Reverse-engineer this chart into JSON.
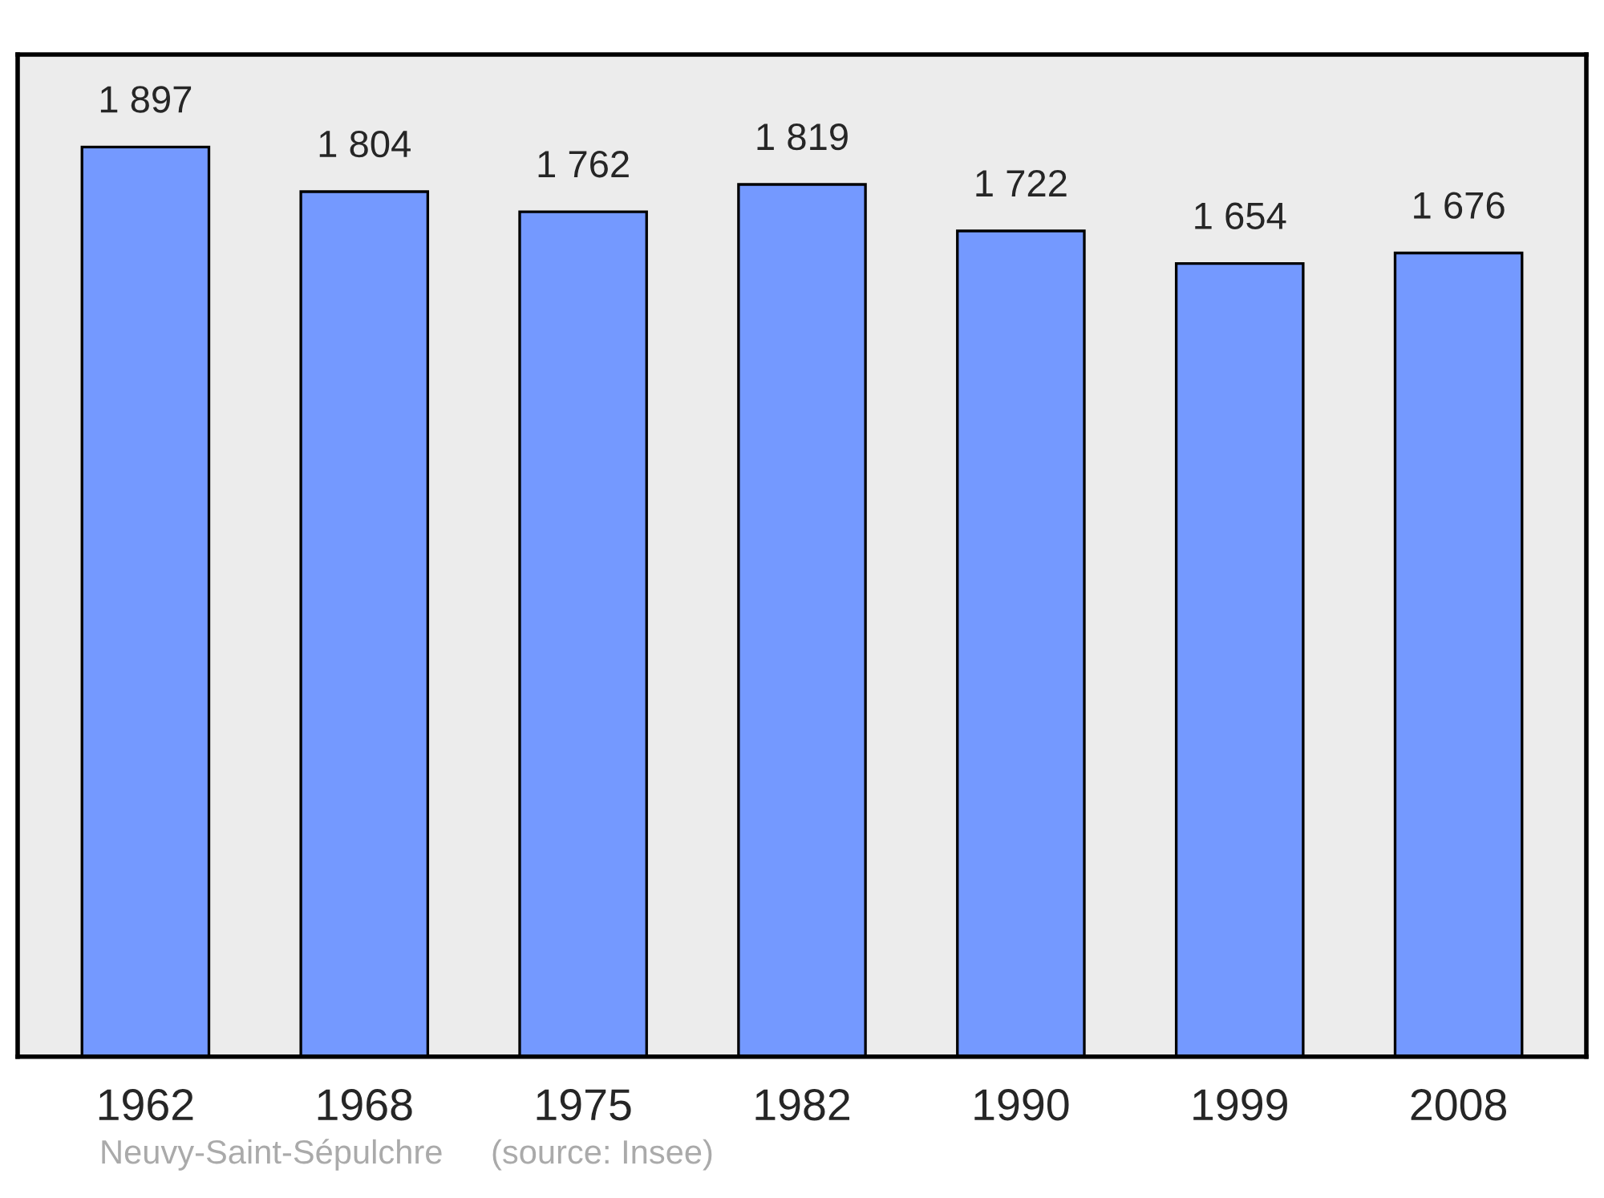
{
  "chart_data": {
    "type": "bar",
    "categories": [
      "1962",
      "1968",
      "1975",
      "1982",
      "1990",
      "1999",
      "2008"
    ],
    "values": [
      1897,
      1804,
      1762,
      1819,
      1722,
      1654,
      1676
    ],
    "value_labels": [
      "1 897",
      "1 804",
      "1 762",
      "1 819",
      "1 722",
      "1 654",
      "1 676"
    ],
    "color": "#7499ff",
    "ylim": [
      0,
      2090
    ],
    "tick_labels": "x",
    "grid": false,
    "legend": false,
    "annotations": [
      "Neuvy-Saint-Sépulchre",
      "(source: Insee)"
    ]
  }
}
